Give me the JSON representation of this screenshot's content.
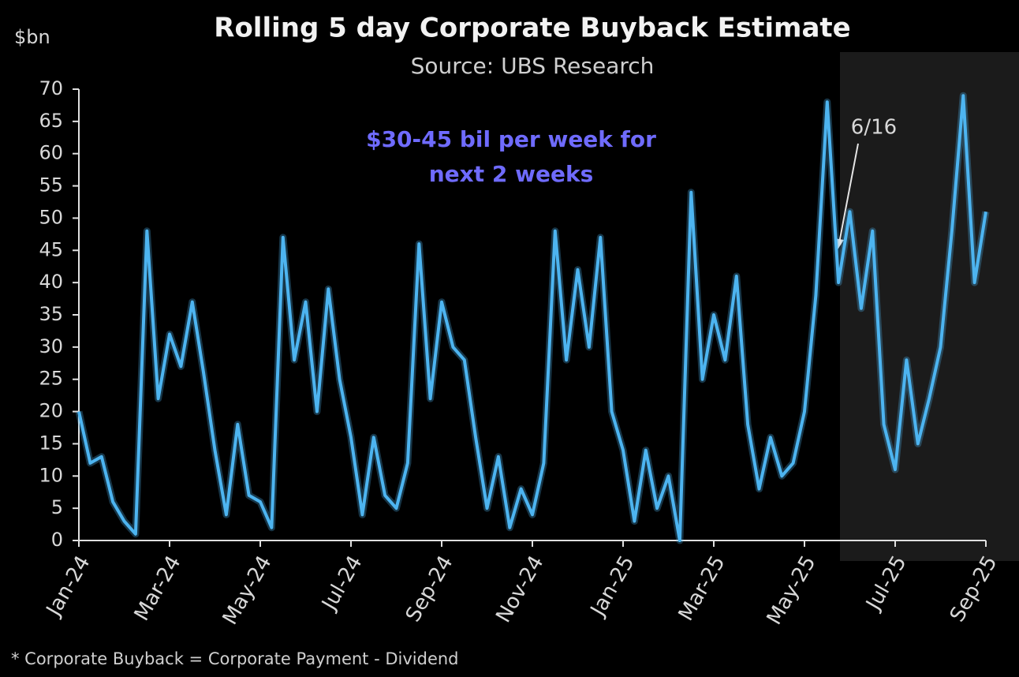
{
  "chart_data": {
    "type": "line",
    "title": "Rolling 5 day Corporate Buyback Estimate",
    "subtitle": "Source: UBS Research",
    "y_label": "$bn",
    "annotations": [
      "$30-45 bil per week for",
      "next 2 weeks",
      "6/16"
    ],
    "footnote": "* Corporate Buyback = Corporate Payment - Dividend",
    "categories": [
      "Jan-24",
      null,
      null,
      null,
      null,
      null,
      null,
      null,
      "Mar-24",
      null,
      null,
      null,
      null,
      null,
      null,
      null,
      "May-24",
      null,
      null,
      null,
      null,
      null,
      null,
      null,
      "Jul-24",
      null,
      null,
      null,
      null,
      null,
      null,
      null,
      "Sep-24",
      null,
      null,
      null,
      null,
      null,
      null,
      null,
      "Nov-24",
      null,
      null,
      null,
      null,
      null,
      null,
      null,
      "Jan-25",
      null,
      null,
      null,
      null,
      null,
      null,
      null,
      "Mar-25",
      null,
      null,
      null,
      null,
      null,
      null,
      null,
      "May-25",
      null,
      null,
      null,
      null,
      null,
      null,
      null,
      "Jul-25",
      null,
      null,
      null,
      null,
      null,
      null,
      null,
      "Sep-25"
    ],
    "series": [
      {
        "name": "Rolling 5 day Corporate Buyback",
        "color": "#4db4f0",
        "values": [
          20,
          12,
          13,
          6,
          3,
          1,
          48,
          22,
          32,
          27,
          37,
          26,
          14,
          4,
          18,
          7,
          6,
          2,
          47,
          28,
          37,
          20,
          39,
          25,
          16,
          4,
          16,
          7,
          5,
          12,
          46,
          22,
          37,
          30,
          28,
          16,
          5,
          13,
          2,
          8,
          4,
          12,
          48,
          28,
          42,
          30,
          47,
          20,
          14,
          3,
          14,
          5,
          10,
          0,
          54,
          25,
          35,
          28,
          41,
          18,
          8,
          16,
          10,
          12,
          20,
          38,
          68,
          40,
          51,
          36,
          48,
          18,
          11,
          28,
          15,
          22,
          30,
          48,
          69,
          40,
          51
        ]
      }
    ],
    "ylim": [
      0,
      70
    ],
    "yticks": [
      0,
      5,
      10,
      15,
      20,
      25,
      30,
      35,
      40,
      45,
      50,
      55,
      60,
      65,
      70
    ],
    "grid": false
  }
}
